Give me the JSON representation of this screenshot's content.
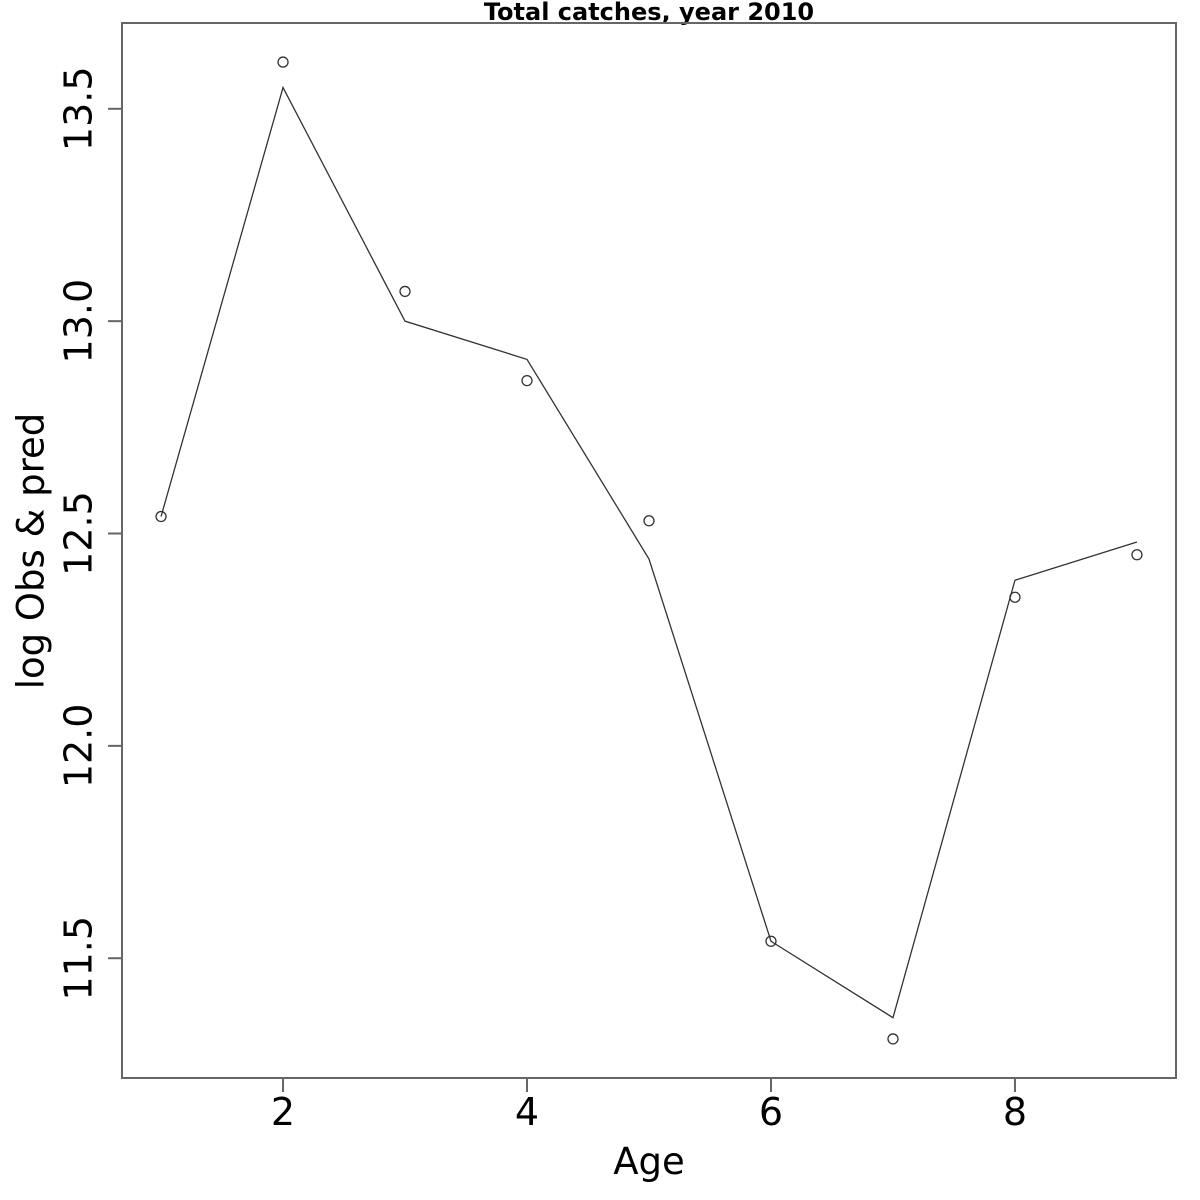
{
  "chart_data": {
    "type": "line",
    "title": "Total catches, year 2010",
    "xlabel": "Age",
    "ylabel": "log Obs & pred",
    "x": [
      1,
      2,
      3,
      4,
      5,
      6,
      7,
      8,
      9
    ],
    "series": [
      {
        "name": "observed",
        "style": "points",
        "marker": "open-circle",
        "values": [
          12.54,
          13.61,
          13.07,
          12.86,
          12.53,
          11.54,
          11.31,
          12.35,
          12.45
        ]
      },
      {
        "name": "predicted",
        "style": "line",
        "values": [
          12.54,
          13.55,
          13.0,
          12.91,
          12.44,
          11.54,
          11.36,
          12.39,
          12.48
        ]
      }
    ],
    "xlim": [
      0.68,
      9.32
    ],
    "ylim": [
      11.218,
      13.702
    ],
    "x_ticks": [
      "2",
      "4",
      "6",
      "8"
    ],
    "y_ticks": [
      "11.5",
      "12.0",
      "12.5",
      "13.0",
      "13.5"
    ],
    "grid": false,
    "legend": "none",
    "colors": {
      "background": "#ffffff",
      "axis": "#666666",
      "data_line": "#333333",
      "marker": "#333333",
      "text": "#000000"
    }
  }
}
